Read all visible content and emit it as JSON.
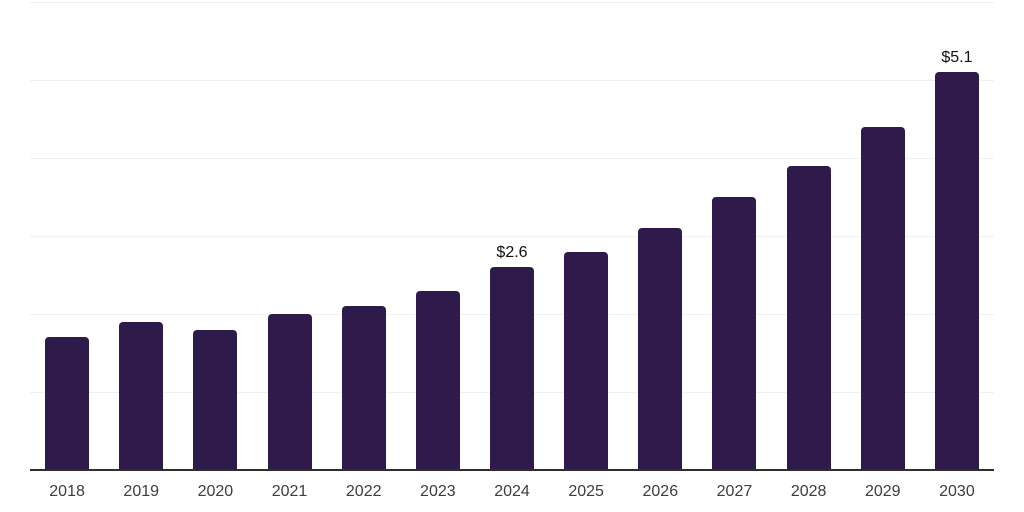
{
  "chart": {
    "background_color": "#ffffff",
    "bar_color": "#2e1a4b",
    "grid_color": "#f0f0f2",
    "axis_color": "#2e2e2e",
    "tick_label_color": "#3d3d3d",
    "data_label_color": "#111111"
  },
  "chart_data": {
    "type": "bar",
    "title": "",
    "xlabel": "",
    "ylabel": "",
    "categories": [
      "2018",
      "2019",
      "2020",
      "2021",
      "2022",
      "2023",
      "2024",
      "2025",
      "2026",
      "2027",
      "2028",
      "2029",
      "2030"
    ],
    "values": [
      1.7,
      1.9,
      1.8,
      2.0,
      2.1,
      2.3,
      2.6,
      2.8,
      3.1,
      3.5,
      3.9,
      4.4,
      5.1
    ],
    "data_labels": {
      "2024": "$2.6",
      "2030": "$5.1"
    },
    "ylim": [
      0,
      6
    ],
    "gridline_values": [
      1,
      2,
      3,
      4,
      5,
      6
    ],
    "grid": "horizontal gridlines only, no y-axis tick labels",
    "legend": "none",
    "x_axis_line": true
  }
}
